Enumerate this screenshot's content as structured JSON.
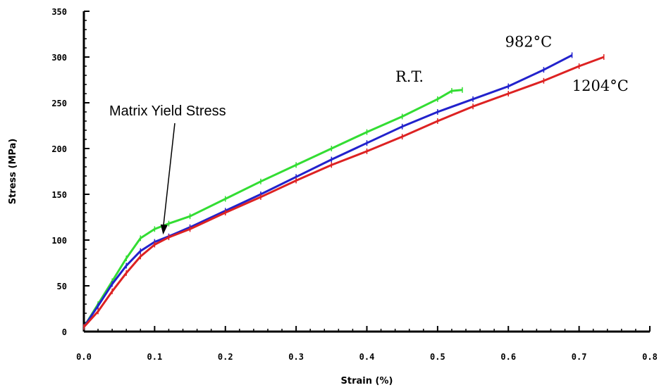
{
  "chart_data": {
    "type": "line",
    "xlabel": "Strain (%)",
    "ylabel": "Stress (MPa)",
    "xlim": [
      0,
      0.8
    ],
    "ylim": [
      0,
      350
    ],
    "x_ticks": [
      "0.0",
      "0.1",
      "0.2",
      "0.3",
      "0.4",
      "0.5",
      "0.6",
      "0.7",
      "0.8"
    ],
    "y_ticks": [
      "0",
      "50",
      "100",
      "150",
      "200",
      "250",
      "300",
      "350"
    ],
    "grid": false,
    "series": [
      {
        "name": "R.T.",
        "color": "#33dd33",
        "points": [
          [
            0,
            5
          ],
          [
            0.02,
            30
          ],
          [
            0.04,
            55
          ],
          [
            0.06,
            80
          ],
          [
            0.08,
            102
          ],
          [
            0.1,
            112
          ],
          [
            0.12,
            118
          ],
          [
            0.15,
            126
          ],
          [
            0.2,
            145
          ],
          [
            0.25,
            164
          ],
          [
            0.3,
            182
          ],
          [
            0.35,
            200
          ],
          [
            0.4,
            218
          ],
          [
            0.45,
            235
          ],
          [
            0.5,
            254
          ],
          [
            0.52,
            263
          ],
          [
            0.535,
            264
          ]
        ]
      },
      {
        "name": "982°C",
        "color": "#2222cc",
        "points": [
          [
            0,
            5
          ],
          [
            0.02,
            28
          ],
          [
            0.04,
            52
          ],
          [
            0.06,
            72
          ],
          [
            0.08,
            88
          ],
          [
            0.1,
            98
          ],
          [
            0.12,
            104
          ],
          [
            0.15,
            114
          ],
          [
            0.2,
            132
          ],
          [
            0.25,
            150
          ],
          [
            0.3,
            169
          ],
          [
            0.35,
            188
          ],
          [
            0.4,
            206
          ],
          [
            0.45,
            224
          ],
          [
            0.5,
            240
          ],
          [
            0.55,
            254
          ],
          [
            0.6,
            268
          ],
          [
            0.65,
            286
          ],
          [
            0.69,
            302
          ]
        ]
      },
      {
        "name": "1204°C",
        "color": "#dd2222",
        "points": [
          [
            0,
            5
          ],
          [
            0.02,
            22
          ],
          [
            0.04,
            44
          ],
          [
            0.06,
            64
          ],
          [
            0.08,
            82
          ],
          [
            0.1,
            95
          ],
          [
            0.12,
            103
          ],
          [
            0.15,
            112
          ],
          [
            0.2,
            130
          ],
          [
            0.25,
            147
          ],
          [
            0.3,
            165
          ],
          [
            0.35,
            182
          ],
          [
            0.4,
            197
          ],
          [
            0.45,
            213
          ],
          [
            0.5,
            230
          ],
          [
            0.55,
            246
          ],
          [
            0.6,
            260
          ],
          [
            0.65,
            274
          ],
          [
            0.7,
            290
          ],
          [
            0.735,
            300
          ]
        ]
      }
    ],
    "annotations": [
      {
        "text": "Matrix Yield Stress",
        "points_to": [
          0.112,
          106
        ]
      }
    ]
  }
}
